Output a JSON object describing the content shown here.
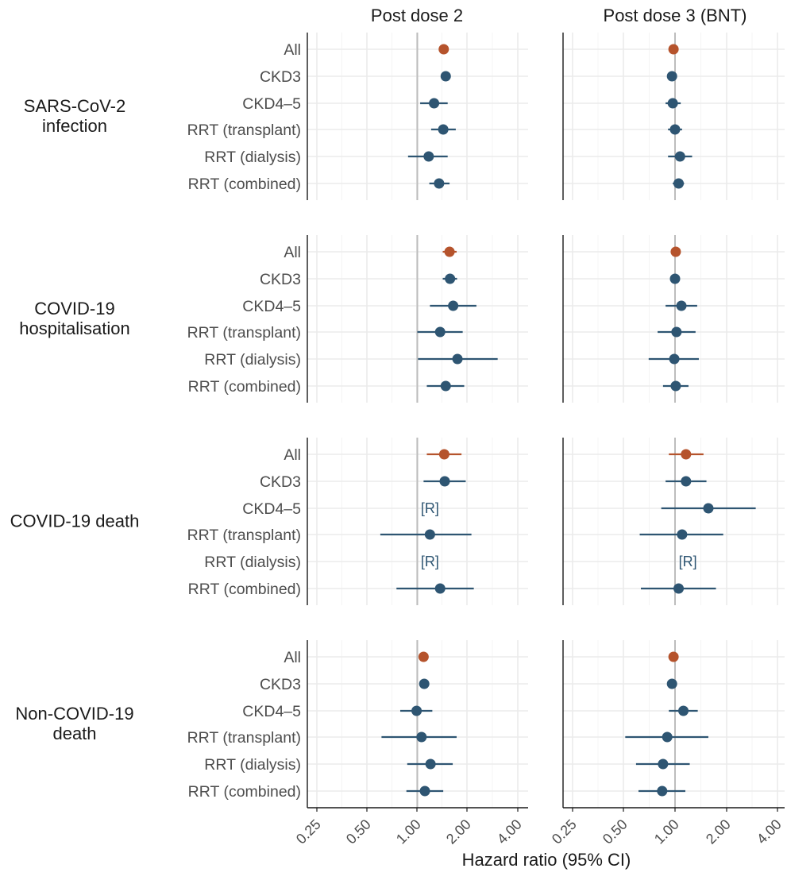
{
  "chart_data": {
    "type": "scatter",
    "subtype": "forest-plot",
    "x_scale": "log2",
    "xlim": [
      0.25,
      4.0
    ],
    "xticks": [
      0.25,
      0.5,
      1.0,
      2.0,
      4.0
    ],
    "xtick_labels": [
      "0.25",
      "0.50",
      "1.00",
      "2.00",
      "4.00"
    ],
    "reference_line": 1.0,
    "xlabel": "Hazard ratio (95% CI)",
    "grid": true,
    "columns": [
      "Post dose 2",
      "Post dose 3 (BNT)"
    ],
    "rows": [
      "SARS-CoV-2\ninfection",
      "COVID-19\nhospitalisation",
      "COVID-19 death",
      "Non-COVID-19\ndeath"
    ],
    "categories": [
      "All",
      "CKD3",
      "CKD4–5",
      "RRT (transplant)",
      "RRT (dialysis)",
      "RRT (combined)"
    ],
    "redacted_label": "[R]",
    "colors": {
      "overall": "#b5532c",
      "subgroup": "#2e5572",
      "reference_line": "#bdbdbd",
      "grid": "#ebebeb",
      "axis": "#1a1a1a"
    },
    "panels": [
      [
        [
          {
            "hr": 1.44,
            "lo": 1.38,
            "hi": 1.51
          },
          {
            "hr": 1.48,
            "lo": 1.41,
            "hi": 1.55
          },
          {
            "hr": 1.26,
            "lo": 1.04,
            "hi": 1.52
          },
          {
            "hr": 1.43,
            "lo": 1.21,
            "hi": 1.7
          },
          {
            "hr": 1.17,
            "lo": 0.88,
            "hi": 1.52
          },
          {
            "hr": 1.35,
            "lo": 1.18,
            "hi": 1.56
          }
        ],
        [
          {
            "hr": 0.98,
            "lo": 0.95,
            "hi": 1.0
          },
          {
            "hr": 0.96,
            "lo": 0.93,
            "hi": 0.99
          },
          {
            "hr": 0.97,
            "lo": 0.88,
            "hi": 1.08
          },
          {
            "hr": 1.0,
            "lo": 0.91,
            "hi": 1.1
          },
          {
            "hr": 1.07,
            "lo": 0.91,
            "hi": 1.26
          },
          {
            "hr": 1.05,
            "lo": 0.97,
            "hi": 1.13
          }
        ]
      ],
      [
        [
          {
            "hr": 1.56,
            "lo": 1.42,
            "hi": 1.72
          },
          {
            "hr": 1.57,
            "lo": 1.42,
            "hi": 1.73
          },
          {
            "hr": 1.64,
            "lo": 1.19,
            "hi": 2.26
          },
          {
            "hr": 1.37,
            "lo": 1.0,
            "hi": 1.87
          },
          {
            "hr": 1.74,
            "lo": 1.01,
            "hi": 3.03
          },
          {
            "hr": 1.48,
            "lo": 1.14,
            "hi": 1.91
          }
        ],
        [
          {
            "hr": 1.01,
            "lo": 0.97,
            "hi": 1.05
          },
          {
            "hr": 1.0,
            "lo": 0.96,
            "hi": 1.05
          },
          {
            "hr": 1.09,
            "lo": 0.88,
            "hi": 1.35
          },
          {
            "hr": 1.02,
            "lo": 0.79,
            "hi": 1.32
          },
          {
            "hr": 0.99,
            "lo": 0.7,
            "hi": 1.38
          },
          {
            "hr": 1.01,
            "lo": 0.85,
            "hi": 1.2
          }
        ]
      ],
      [
        [
          {
            "hr": 1.45,
            "lo": 1.14,
            "hi": 1.84
          },
          {
            "hr": 1.46,
            "lo": 1.09,
            "hi": 1.95
          },
          null,
          {
            "hr": 1.19,
            "lo": 0.6,
            "hi": 2.11
          },
          null,
          {
            "hr": 1.37,
            "lo": 0.75,
            "hi": 2.18
          }
        ],
        [
          {
            "hr": 1.16,
            "lo": 0.92,
            "hi": 1.47
          },
          {
            "hr": 1.16,
            "lo": 0.88,
            "hi": 1.53
          },
          {
            "hr": 1.57,
            "lo": 0.83,
            "hi": 2.98
          },
          {
            "hr": 1.1,
            "lo": 0.62,
            "hi": 1.92
          },
          null,
          {
            "hr": 1.05,
            "lo": 0.63,
            "hi": 1.74
          }
        ]
      ],
      [
        [
          {
            "hr": 1.09,
            "lo": 1.04,
            "hi": 1.14
          },
          {
            "hr": 1.1,
            "lo": 1.04,
            "hi": 1.16
          },
          {
            "hr": 0.99,
            "lo": 0.79,
            "hi": 1.23
          },
          {
            "hr": 1.06,
            "lo": 0.61,
            "hi": 1.72
          },
          {
            "hr": 1.2,
            "lo": 0.87,
            "hi": 1.63
          },
          {
            "hr": 1.11,
            "lo": 0.86,
            "hi": 1.43
          }
        ],
        [
          {
            "hr": 0.98,
            "lo": 0.95,
            "hi": 1.01
          },
          {
            "hr": 0.96,
            "lo": 0.92,
            "hi": 1.02
          },
          {
            "hr": 1.12,
            "lo": 0.92,
            "hi": 1.36
          },
          {
            "hr": 0.9,
            "lo": 0.51,
            "hi": 1.57
          },
          {
            "hr": 0.85,
            "lo": 0.59,
            "hi": 1.22
          },
          {
            "hr": 0.84,
            "lo": 0.61,
            "hi": 1.15
          }
        ]
      ]
    ]
  }
}
